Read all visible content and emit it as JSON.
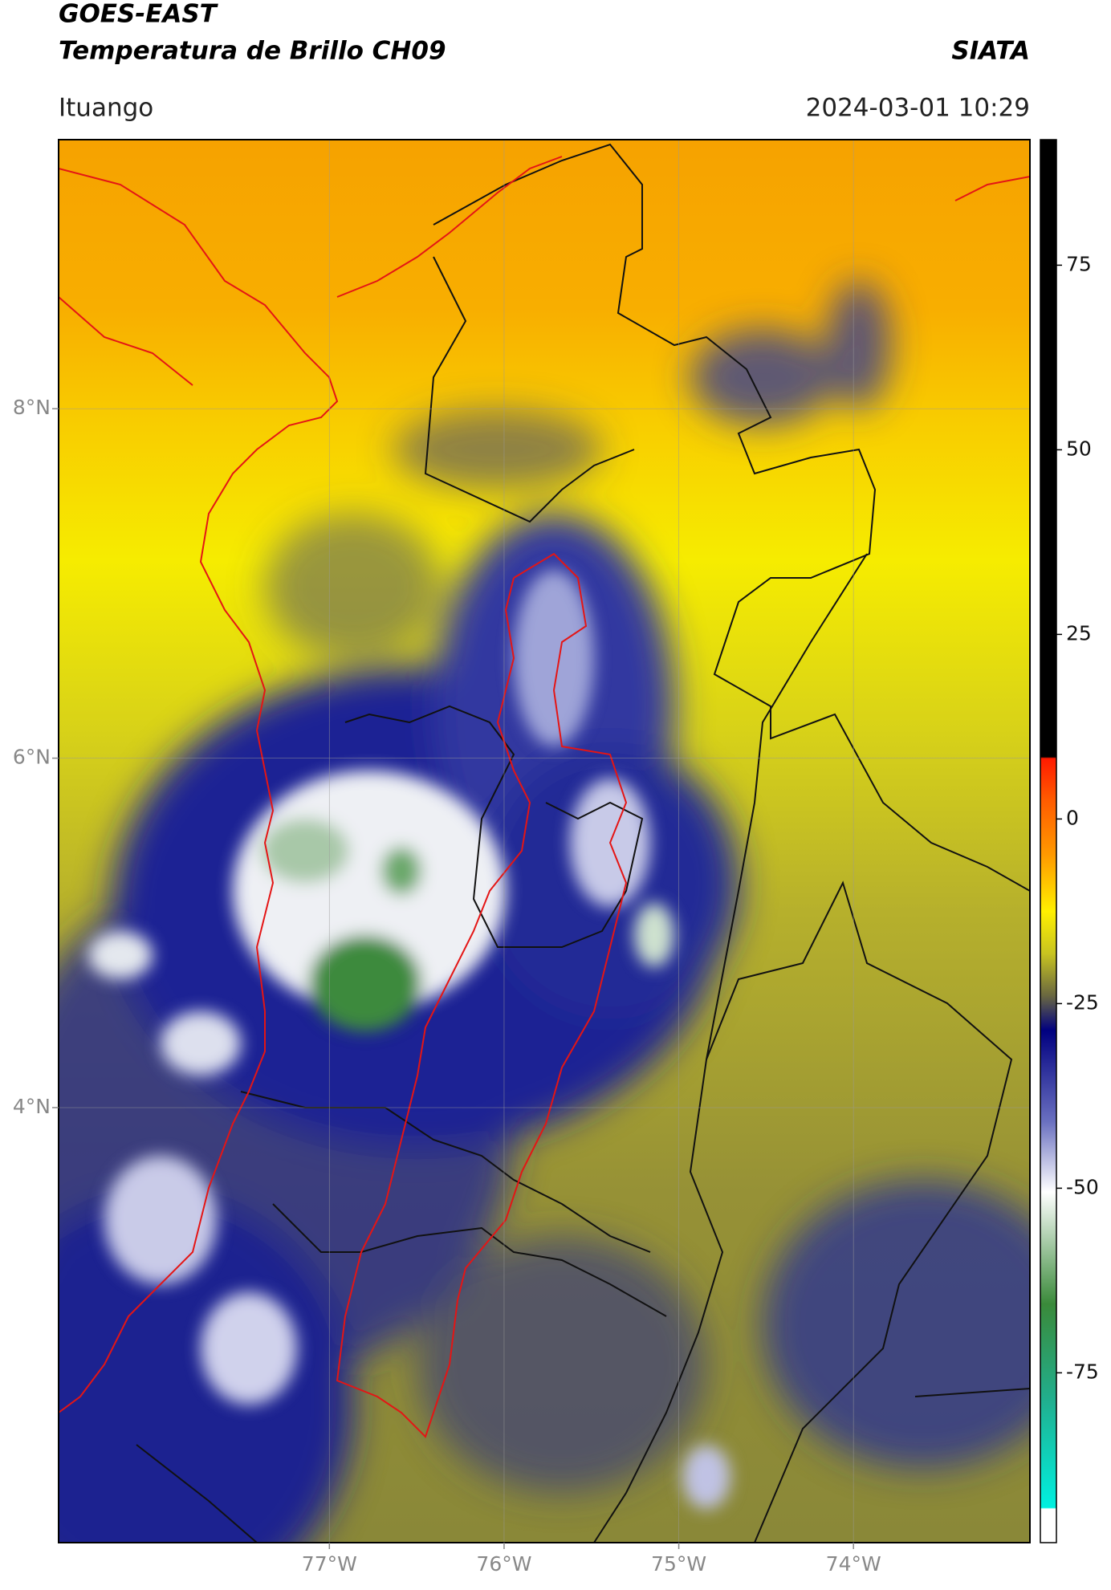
{
  "header": {
    "title": "GOES-EAST",
    "subtitle": "Temperatura de Brillo CH09",
    "source": "SIATA",
    "region": "Ituango",
    "timestamp": "2024-03-01 10:29"
  },
  "chart_data": {
    "type": "map",
    "xlim": [
      -78.55,
      -72.99
    ],
    "ylim": [
      1.51,
      9.54
    ],
    "xticks": [
      {
        "value": -77,
        "label": "77°W"
      },
      {
        "value": -76,
        "label": "76°W"
      },
      {
        "value": -75,
        "label": "75°W"
      },
      {
        "value": -74,
        "label": "74°W"
      }
    ],
    "yticks": [
      {
        "value": 8,
        "label": "8°N"
      },
      {
        "value": 6,
        "label": "6°N"
      },
      {
        "value": 4,
        "label": "4°N"
      }
    ],
    "grid": true,
    "clim": [
      -98,
      92
    ],
    "cticks": [
      75,
      50,
      25,
      0,
      -25,
      -50,
      -75
    ]
  }
}
